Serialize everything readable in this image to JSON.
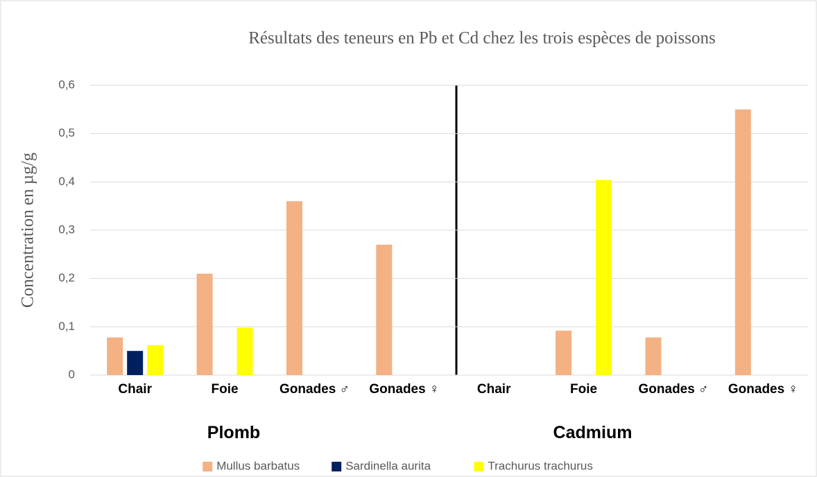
{
  "chart_data": {
    "type": "bar",
    "title": "Résultats des teneurs en Pb et Cd chez les trois espèces de poissons",
    "ylabel": "Concentration en µg/g",
    "categories": [
      "Chair",
      "Foie",
      "Gonades ♂",
      "Gonades ♀",
      "Chair",
      "Foie",
      "Gonades ♂",
      "Gonades ♀"
    ],
    "groups": [
      "Plomb",
      "Cadmium"
    ],
    "series": [
      {
        "name": "Mullus barbatus",
        "color": "#f4b183",
        "values": [
          0.078,
          0.21,
          0.36,
          0.27,
          null,
          0.092,
          0.078,
          0.55
        ]
      },
      {
        "name": "Sardinella aurita",
        "color": "#002060",
        "values": [
          0.05,
          null,
          null,
          null,
          null,
          null,
          null,
          null
        ]
      },
      {
        "name": "Trachurus trachurus",
        "color": "#ffff00",
        "values": [
          0.062,
          0.098,
          null,
          null,
          null,
          0.404,
          null,
          null
        ]
      }
    ],
    "ylim": [
      0,
      0.6
    ],
    "yticks": [
      0,
      {
        "value": 0.1,
        "label": "0,1"
      },
      {
        "value": 0.2,
        "label": "0,2"
      },
      {
        "value": 0.3,
        "label": "0,3"
      },
      {
        "value": 0.4,
        "label": "0,4"
      },
      {
        "value": 0.5,
        "label": "0,5"
      },
      {
        "value": 0.6,
        "label": "0,6"
      }
    ],
    "grid": true,
    "legend": "bottom"
  }
}
